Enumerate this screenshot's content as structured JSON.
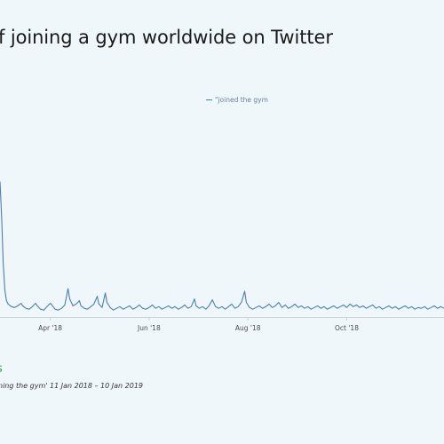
{
  "header": {
    "title": "f joining a gym worldwide on Twitter"
  },
  "legend": {
    "label": "\"joined the gym"
  },
  "footer": {
    "brand": "s",
    "caption": "ning the gym' 11 Jan 2018 – 10 Jan 2019"
  },
  "colors": {
    "line": "#4a7fb5",
    "background": "#f0f7fb",
    "axis": "#c9d3dc"
  },
  "chart_data": {
    "type": "line",
    "title": "f joining a gym worldwide on Twitter",
    "xlabel": "",
    "ylabel": "",
    "grid": false,
    "legend_position": "top-center",
    "x_range": [
      "2018-03-01",
      "2018-11-30"
    ],
    "ylim": [
      0,
      170
    ],
    "ticks": [
      {
        "date": "2018-04-01",
        "label": "Apr '18"
      },
      {
        "date": "2018-06-01",
        "label": "Jun '18"
      },
      {
        "date": "2018-08-01",
        "label": "Aug '18"
      },
      {
        "date": "2018-10-01",
        "label": "Oct '18"
      }
    ],
    "series": [
      {
        "name": "\"joined the gym",
        "points": [
          [
            "2018-03-01",
            155
          ],
          [
            "2018-03-02",
            115
          ],
          [
            "2018-03-03",
            60
          ],
          [
            "2018-03-04",
            28
          ],
          [
            "2018-03-05",
            16
          ],
          [
            "2018-03-06",
            12
          ],
          [
            "2018-03-08",
            9
          ],
          [
            "2018-03-10",
            8
          ],
          [
            "2018-03-12",
            10
          ],
          [
            "2018-03-14",
            13
          ],
          [
            "2018-03-15",
            10
          ],
          [
            "2018-03-17",
            7
          ],
          [
            "2018-03-19",
            6
          ],
          [
            "2018-03-21",
            9
          ],
          [
            "2018-03-23",
            13
          ],
          [
            "2018-03-24",
            10
          ],
          [
            "2018-03-26",
            6
          ],
          [
            "2018-03-28",
            5
          ],
          [
            "2018-03-30",
            9
          ],
          [
            "2018-04-01",
            13
          ],
          [
            "2018-04-02",
            11
          ],
          [
            "2018-04-04",
            6
          ],
          [
            "2018-04-06",
            5
          ],
          [
            "2018-04-08",
            7
          ],
          [
            "2018-04-10",
            11
          ],
          [
            "2018-04-12",
            30
          ],
          [
            "2018-04-13",
            18
          ],
          [
            "2018-04-15",
            10
          ],
          [
            "2018-04-17",
            12
          ],
          [
            "2018-04-19",
            16
          ],
          [
            "2018-04-20",
            10
          ],
          [
            "2018-04-22",
            7
          ],
          [
            "2018-04-24",
            6
          ],
          [
            "2018-04-26",
            9
          ],
          [
            "2018-04-28",
            12
          ],
          [
            "2018-04-30",
            21
          ],
          [
            "2018-05-01",
            12
          ],
          [
            "2018-05-03",
            8
          ],
          [
            "2018-05-05",
            25
          ],
          [
            "2018-05-06",
            14
          ],
          [
            "2018-05-08",
            8
          ],
          [
            "2018-05-10",
            5
          ],
          [
            "2018-05-12",
            7
          ],
          [
            "2018-05-14",
            9
          ],
          [
            "2018-05-16",
            6
          ],
          [
            "2018-05-18",
            8
          ],
          [
            "2018-05-20",
            10
          ],
          [
            "2018-05-22",
            6
          ],
          [
            "2018-05-24",
            8
          ],
          [
            "2018-05-26",
            11
          ],
          [
            "2018-05-28",
            7
          ],
          [
            "2018-05-30",
            6
          ],
          [
            "2018-06-01",
            8
          ],
          [
            "2018-06-03",
            11
          ],
          [
            "2018-06-05",
            7
          ],
          [
            "2018-06-07",
            9
          ],
          [
            "2018-06-09",
            6
          ],
          [
            "2018-06-11",
            8
          ],
          [
            "2018-06-13",
            10
          ],
          [
            "2018-06-15",
            7
          ],
          [
            "2018-06-17",
            9
          ],
          [
            "2018-06-19",
            6
          ],
          [
            "2018-06-21",
            8
          ],
          [
            "2018-06-23",
            11
          ],
          [
            "2018-06-25",
            7
          ],
          [
            "2018-06-27",
            9
          ],
          [
            "2018-06-29",
            18
          ],
          [
            "2018-06-30",
            10
          ],
          [
            "2018-07-02",
            7
          ],
          [
            "2018-07-04",
            9
          ],
          [
            "2018-07-06",
            6
          ],
          [
            "2018-07-08",
            10
          ],
          [
            "2018-07-10",
            17
          ],
          [
            "2018-07-12",
            9
          ],
          [
            "2018-07-14",
            7
          ],
          [
            "2018-07-16",
            9
          ],
          [
            "2018-07-18",
            6
          ],
          [
            "2018-07-20",
            9
          ],
          [
            "2018-07-22",
            12
          ],
          [
            "2018-07-24",
            7
          ],
          [
            "2018-07-26",
            9
          ],
          [
            "2018-07-28",
            14
          ],
          [
            "2018-07-30",
            27
          ],
          [
            "2018-07-31",
            14
          ],
          [
            "2018-08-02",
            8
          ],
          [
            "2018-08-04",
            6
          ],
          [
            "2018-08-06",
            8
          ],
          [
            "2018-08-08",
            10
          ],
          [
            "2018-08-10",
            7
          ],
          [
            "2018-08-12",
            9
          ],
          [
            "2018-08-14",
            12
          ],
          [
            "2018-08-16",
            8
          ],
          [
            "2018-08-18",
            10
          ],
          [
            "2018-08-20",
            14
          ],
          [
            "2018-08-22",
            8
          ],
          [
            "2018-08-24",
            11
          ],
          [
            "2018-08-26",
            7
          ],
          [
            "2018-08-28",
            9
          ],
          [
            "2018-08-30",
            12
          ],
          [
            "2018-09-01",
            8
          ],
          [
            "2018-09-03",
            10
          ],
          [
            "2018-09-05",
            7
          ],
          [
            "2018-09-07",
            9
          ],
          [
            "2018-09-09",
            6
          ],
          [
            "2018-09-11",
            8
          ],
          [
            "2018-09-13",
            10
          ],
          [
            "2018-09-15",
            7
          ],
          [
            "2018-09-17",
            9
          ],
          [
            "2018-09-19",
            6
          ],
          [
            "2018-09-21",
            8
          ],
          [
            "2018-09-23",
            10
          ],
          [
            "2018-09-25",
            7
          ],
          [
            "2018-09-27",
            9
          ],
          [
            "2018-09-29",
            11
          ],
          [
            "2018-10-01",
            8
          ],
          [
            "2018-10-03",
            12
          ],
          [
            "2018-10-05",
            9
          ],
          [
            "2018-10-07",
            11
          ],
          [
            "2018-10-09",
            8
          ],
          [
            "2018-10-11",
            10
          ],
          [
            "2018-10-13",
            7
          ],
          [
            "2018-10-15",
            9
          ],
          [
            "2018-10-17",
            11
          ],
          [
            "2018-10-19",
            7
          ],
          [
            "2018-10-21",
            9
          ],
          [
            "2018-10-23",
            6
          ],
          [
            "2018-10-25",
            8
          ],
          [
            "2018-10-27",
            10
          ],
          [
            "2018-10-29",
            7
          ],
          [
            "2018-10-31",
            9
          ],
          [
            "2018-11-02",
            6
          ],
          [
            "2018-11-04",
            8
          ],
          [
            "2018-11-06",
            10
          ],
          [
            "2018-11-08",
            7
          ],
          [
            "2018-11-10",
            9
          ],
          [
            "2018-11-12",
            6
          ],
          [
            "2018-11-14",
            8
          ],
          [
            "2018-11-16",
            7
          ],
          [
            "2018-11-18",
            9
          ],
          [
            "2018-11-20",
            6
          ],
          [
            "2018-11-22",
            8
          ],
          [
            "2018-11-24",
            10
          ],
          [
            "2018-11-26",
            7
          ],
          [
            "2018-11-28",
            9
          ],
          [
            "2018-11-30",
            7
          ]
        ]
      }
    ]
  }
}
